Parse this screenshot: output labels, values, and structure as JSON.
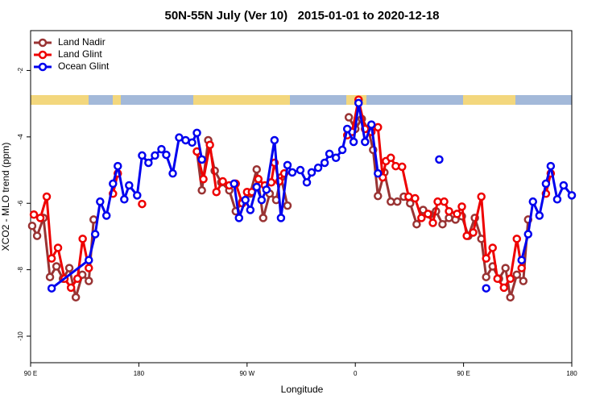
{
  "chart_data": {
    "type": "line",
    "title": "50N-55N July (Ver 10)   2015-01-01 to 2020-12-18",
    "x_label": "Longitude",
    "y_label": "XCO2 - MLO trend (ppm)",
    "xlim": [
      90,
      540
    ],
    "ylim": [
      -10.8,
      -0.8
    ],
    "xticks": [
      {
        "value": 90,
        "label": "90 E"
      },
      180,
      {
        "value": 270,
        "label": "90 W"
      },
      {
        "value": 360,
        "label": "0"
      },
      {
        "value": 450,
        "label": "90 E"
      },
      {
        "value": 540,
        "label": "180"
      }
    ],
    "yticks": [
      -10,
      -8,
      -6,
      -4,
      -2
    ],
    "legend": "top-left",
    "series": [
      {
        "name": "Land Nadir",
        "color": "#993333",
        "x": [
          91.3,
          95.4,
          100.7,
          106.1,
          111.5,
          116.9,
          122.2,
          127.6,
          133.0,
          138.4,
          142.4,
          null,
          228.3,
          232.4,
          237.7,
          243.1,
          248.5,
          255.2,
          260.6,
          266.0,
          272.7,
          278.0,
          283.4,
          288.8,
          294.2,
          298.2,
          303.6,
          null,
          354.6,
          360.0,
          365.4,
          370.7,
          374.8,
          378.8,
          384.2,
          389.5,
          394.9,
          400.3,
          405.6,
          411.0,
          416.4,
          421.8,
          427.1,
          432.5,
          437.9,
          443.3,
          448.6,
          454.0,
          459.4,
          464.8,
          468.8,
          474.2,
          479.5,
          484.9,
          488.9,
          494.3,
          499.7,
          503.7
        ],
        "values": [
          -6.68,
          -6.98,
          -6.44,
          -8.22,
          -7.9,
          -8.27,
          -7.95,
          -8.83,
          -8.15,
          -8.34,
          -6.49,
          null,
          -4.44,
          -5.61,
          -4.1,
          -5.02,
          -5.37,
          -5.61,
          -6.24,
          -5.95,
          -5.71,
          -4.98,
          -6.44,
          -5.71,
          -5.9,
          -5.22,
          -6.07,
          null,
          -3.41,
          -3.76,
          -3.46,
          -3.76,
          -4.39,
          -5.78,
          -5.07,
          -5.95,
          -5.95,
          -5.8,
          -6.0,
          -6.63,
          -6.2,
          -6.34,
          -6.24,
          -6.63,
          -6.44,
          -6.49,
          -6.39,
          -6.98,
          -6.44,
          -7.07,
          -8.22,
          -7.9,
          -8.27,
          -7.95,
          -8.83,
          -8.15,
          -8.34,
          -6.49
        ]
      },
      {
        "name": "Land Glint",
        "color": "#ee0000",
        "x": [
          92.7,
          98.1,
          103.4,
          107.5,
          112.8,
          118.2,
          123.6,
          129.0,
          133.3,
          138.4,
          null,
          158.5,
          162.5,
          null,
          182.7,
          null,
          228.3,
          233.7,
          239.1,
          244.5,
          249.8,
          255.2,
          260.6,
          266.0,
          270.0,
          274.0,
          279.4,
          284.8,
          290.1,
          292.8,
          296.8,
          300.9,
          null,
          353.3,
          357.3,
          362.7,
          368.1,
          373.4,
          378.8,
          382.8,
          385.5,
          389.5,
          393.6,
          398.9,
          404.3,
          409.7,
          415.0,
          420.4,
          424.5,
          428.5,
          433.9,
          437.9,
          444.6,
          448.6,
          452.7,
          458.0,
          464.8,
          468.8,
          474.2,
          478.2,
          483.6,
          488.9,
          494.3,
          498.3,
          null,
          518.5,
          522.5
        ],
        "values": [
          -6.34,
          -6.44,
          -5.8,
          -7.66,
          -7.34,
          -8.27,
          -8.54,
          -8.27,
          -7.07,
          -7.95,
          null,
          -5.71,
          -5.1,
          null,
          -6.02,
          null,
          -4.44,
          -5.27,
          -4.24,
          -5.66,
          -5.34,
          -5.46,
          -5.41,
          -6.0,
          -5.66,
          -5.66,
          -5.27,
          -5.46,
          -5.37,
          -4.78,
          -5.34,
          -5.1,
          null,
          -3.95,
          -3.85,
          -2.88,
          -3.76,
          -3.85,
          -3.71,
          -5.22,
          -4.73,
          -4.63,
          -4.88,
          -4.9,
          -5.8,
          -5.85,
          -6.44,
          -6.32,
          -6.59,
          -5.95,
          -5.95,
          -6.24,
          -6.32,
          -6.1,
          -6.98,
          -6.88,
          -5.8,
          -7.66,
          -7.34,
          -8.27,
          -8.54,
          -8.27,
          -7.07,
          -7.95,
          null,
          -5.71,
          -5.1
        ]
      },
      {
        "name": "Ocean Glint",
        "color": "#0000ee",
        "x": [
          107.5,
          138.4,
          143.7,
          147.8,
          153.1,
          158.5,
          162.5,
          167.9,
          171.9,
          178.6,
          182.7,
          188.0,
          193.4,
          198.8,
          202.8,
          208.2,
          213.5,
          218.9,
          224.3,
          228.3,
          232.4,
          null,
          259.2,
          263.3,
          268.6,
          272.7,
          278.0,
          282.1,
          286.1,
          292.8,
          298.2,
          303.6,
          307.6,
          314.3,
          319.7,
          323.7,
          329.1,
          334.5,
          338.5,
          343.9,
          349.2,
          353.3,
          358.6,
          362.7,
          368.1,
          373.4,
          378.8,
          null,
          429.8,
          null,
          468.8,
          null,
          498.3,
          503.7,
          507.7,
          513.1,
          518.5,
          522.5,
          527.9,
          533.2,
          540.0
        ],
        "values": [
          -8.56,
          -7.71,
          -6.93,
          -5.95,
          -6.37,
          -5.41,
          -4.88,
          -5.88,
          -5.46,
          -5.76,
          -4.56,
          -4.78,
          -4.56,
          -4.37,
          -4.54,
          -5.1,
          -4.02,
          -4.1,
          -4.17,
          -3.88,
          -4.68,
          null,
          -5.41,
          -6.44,
          -5.9,
          -6.2,
          -5.51,
          -5.9,
          -5.59,
          -4.1,
          -6.44,
          -4.85,
          -5.07,
          -5.0,
          -5.37,
          -5.07,
          -4.93,
          -4.78,
          -4.51,
          -4.63,
          -4.39,
          -3.76,
          -4.15,
          -2.98,
          -4.15,
          -3.63,
          -5.1,
          null,
          -4.68,
          null,
          -8.56,
          null,
          -7.71,
          -6.93,
          -5.95,
          -6.37,
          -5.41,
          -4.88,
          -5.88,
          -5.46,
          -5.76
        ]
      }
    ]
  }
}
